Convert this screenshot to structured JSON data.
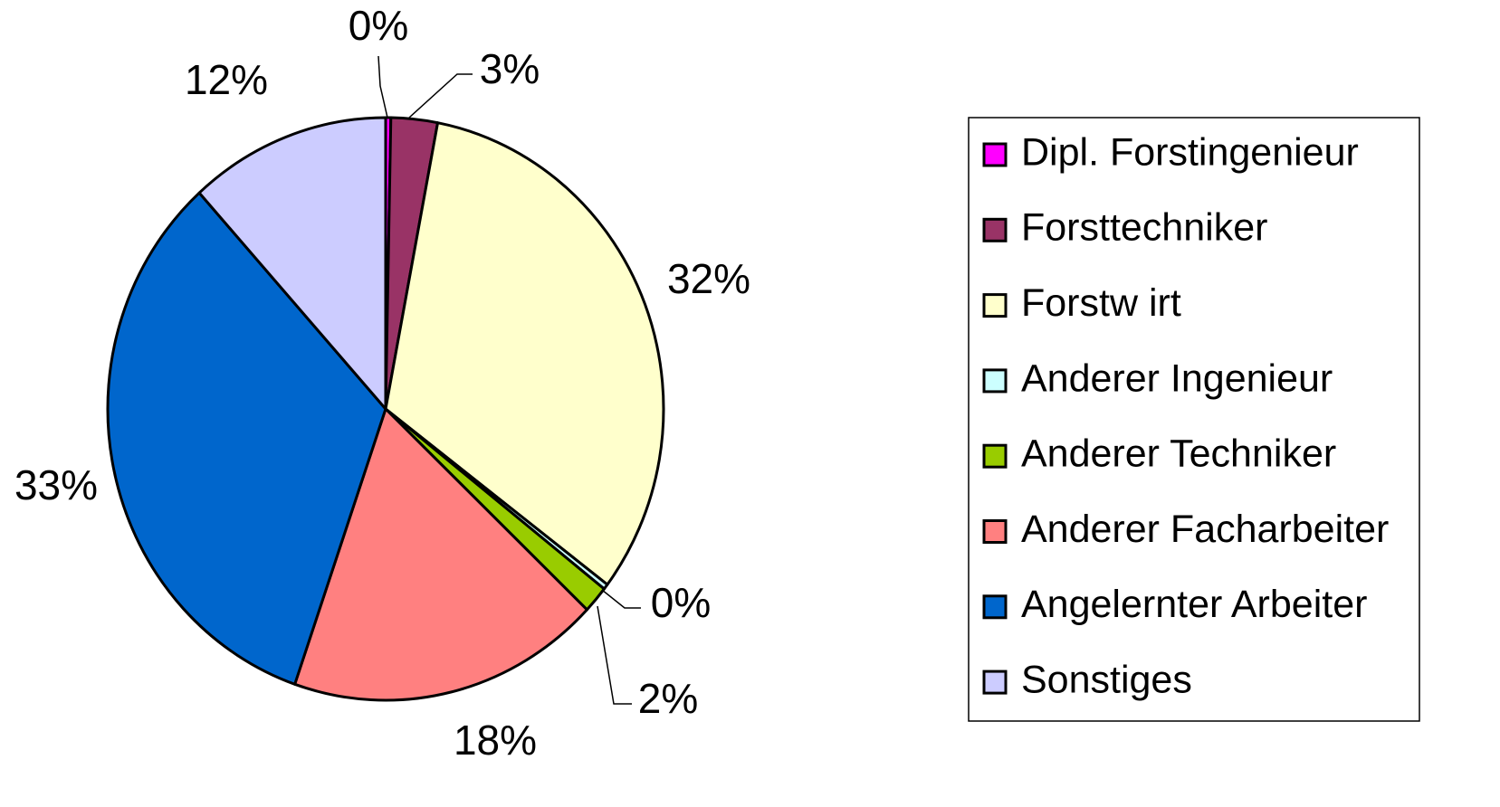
{
  "chart_data": {
    "type": "pie",
    "categories": [
      "Dipl. Forstingenieur",
      "Forsttechniker",
      "Forstw irt",
      "Anderer Ingenieur",
      "Anderer Techniker",
      "Anderer Facharbeiter",
      "Angelernter Arbeiter",
      "Sonstiges"
    ],
    "values": [
      0.3,
      2.7,
      32.3,
      0.3,
      1.5,
      18.2,
      33,
      11.7
    ],
    "value_labels": [
      "0%",
      "3%",
      "32%",
      "0%",
      "2%",
      "18%",
      "33%",
      "12%"
    ],
    "colors": [
      "#ff00ff",
      "#993366",
      "#ffffcc",
      "#ccffff",
      "#99cc00",
      "#ff8080",
      "#0066cc",
      "#ccccff"
    ],
    "legend": "right"
  }
}
